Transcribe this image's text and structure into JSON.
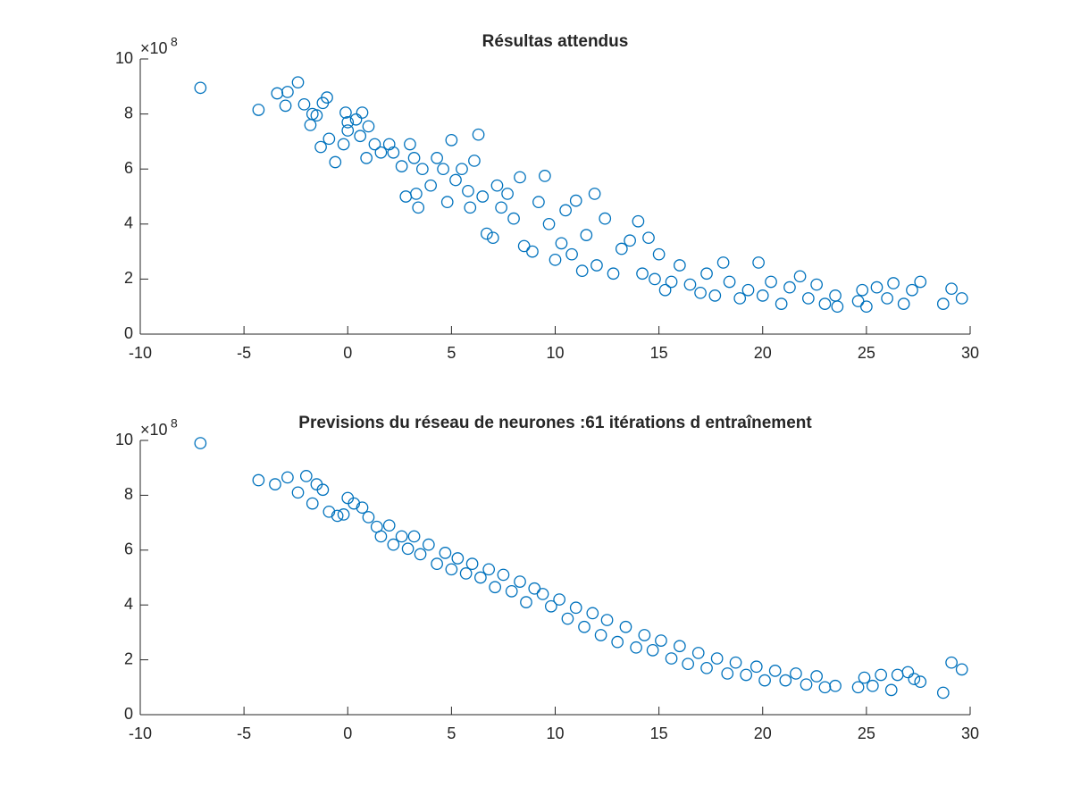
{
  "chart_data": [
    {
      "type": "scatter",
      "title": "Résultas attendus",
      "color": "#0072bd",
      "y_multiplier": "×10",
      "y_exponent": "8",
      "xlim": [
        -10,
        30
      ],
      "xticks": [
        -10,
        -5,
        0,
        5,
        10,
        15,
        20,
        25,
        30
      ],
      "ylim": [
        0,
        10
      ],
      "yticks": [
        0,
        2,
        4,
        6,
        8,
        10
      ],
      "x": [
        -7.1,
        -4.3,
        -3.4,
        -3.0,
        -2.9,
        -2.4,
        -2.1,
        -1.8,
        -1.7,
        -1.5,
        -1.3,
        -1.2,
        -1.0,
        -0.9,
        -0.6,
        -0.2,
        -0.1,
        0,
        0,
        0.4,
        0.6,
        0.7,
        0.9,
        1.0,
        1.3,
        1.6,
        2.0,
        2.2,
        2.6,
        2.8,
        3.0,
        3.2,
        3.3,
        3.4,
        3.6,
        4.0,
        4.3,
        4.6,
        4.8,
        5.0,
        5.2,
        5.5,
        5.8,
        5.9,
        6.1,
        6.3,
        6.5,
        6.7,
        7.0,
        7.2,
        7.4,
        7.7,
        8.0,
        8.3,
        8.5,
        8.9,
        9.2,
        9.5,
        9.7,
        10.0,
        10.3,
        10.5,
        10.8,
        11.0,
        11.3,
        11.5,
        11.9,
        12.0,
        12.4,
        12.8,
        13.2,
        13.6,
        14.0,
        14.2,
        14.5,
        14.8,
        15.0,
        15.3,
        15.6,
        16.0,
        16.5,
        17.0,
        17.3,
        17.7,
        18.1,
        18.4,
        18.9,
        19.3,
        19.8,
        20.0,
        20.4,
        20.9,
        21.3,
        21.8,
        22.2,
        22.6,
        23.0,
        23.5,
        23.6,
        24.6,
        24.8,
        25.0,
        25.5,
        26.0,
        26.3,
        26.8,
        27.2,
        27.6,
        28.7,
        29.1,
        29.6
      ],
      "values": [
        8.95,
        8.15,
        8.75,
        8.3,
        8.8,
        9.15,
        8.35,
        7.6,
        8.0,
        7.95,
        6.8,
        8.4,
        8.6,
        7.1,
        6.25,
        6.9,
        8.05,
        7.7,
        7.4,
        7.8,
        7.2,
        8.05,
        6.4,
        7.55,
        6.9,
        6.6,
        6.9,
        6.6,
        6.1,
        5.0,
        6.9,
        6.4,
        5.1,
        4.6,
        6.0,
        5.4,
        6.4,
        6.0,
        4.8,
        7.05,
        5.6,
        6.0,
        5.2,
        4.6,
        6.3,
        7.25,
        5.0,
        3.65,
        3.5,
        5.4,
        4.6,
        5.1,
        4.2,
        5.7,
        3.2,
        3.0,
        4.8,
        5.75,
        4.0,
        2.7,
        3.3,
        4.5,
        2.9,
        4.85,
        2.3,
        3.6,
        5.1,
        2.5,
        4.2,
        2.2,
        3.1,
        3.4,
        4.1,
        2.2,
        3.5,
        2.0,
        2.9,
        1.6,
        1.9,
        2.5,
        1.8,
        1.5,
        2.2,
        1.4,
        2.6,
        1.9,
        1.3,
        1.6,
        2.6,
        1.4,
        1.9,
        1.1,
        1.7,
        2.1,
        1.3,
        1.8,
        1.1,
        1.4,
        1.0,
        1.2,
        1.6,
        1.0,
        1.7,
        1.3,
        1.85,
        1.1,
        1.6,
        1.9,
        1.1,
        1.65,
        1.3
      ]
    },
    {
      "type": "scatter",
      "title": "Previsions du réseau de neurones :61 itérations d entraînement",
      "color": "#0072bd",
      "y_multiplier": "×10",
      "y_exponent": "8",
      "xlim": [
        -10,
        30
      ],
      "xticks": [
        -10,
        -5,
        0,
        5,
        10,
        15,
        20,
        25,
        30
      ],
      "ylim": [
        0,
        10
      ],
      "yticks": [
        0,
        2,
        4,
        6,
        8,
        10
      ],
      "x": [
        -7.1,
        -4.3,
        -3.5,
        -2.9,
        -2.4,
        -2.0,
        -1.7,
        -1.5,
        -1.2,
        -0.9,
        -0.5,
        -0.2,
        0,
        0.3,
        0.7,
        1.0,
        1.4,
        1.6,
        2.0,
        2.2,
        2.6,
        2.9,
        3.2,
        3.5,
        3.9,
        4.3,
        4.7,
        5.0,
        5.3,
        5.7,
        6.0,
        6.4,
        6.8,
        7.1,
        7.5,
        7.9,
        8.3,
        8.6,
        9.0,
        9.4,
        9.8,
        10.2,
        10.6,
        11.0,
        11.4,
        11.8,
        12.2,
        12.5,
        13.0,
        13.4,
        13.9,
        14.3,
        14.7,
        15.1,
        15.6,
        16.0,
        16.4,
        16.9,
        17.3,
        17.8,
        18.3,
        18.7,
        19.2,
        19.7,
        20.1,
        20.6,
        21.1,
        21.6,
        22.1,
        22.6,
        23.0,
        23.5,
        24.6,
        24.9,
        25.3,
        25.7,
        26.2,
        26.5,
        27.0,
        27.3,
        27.6,
        28.7,
        29.1,
        29.6
      ],
      "values": [
        9.9,
        8.55,
        8.4,
        8.65,
        8.1,
        8.7,
        7.7,
        8.4,
        8.2,
        7.4,
        7.25,
        7.3,
        7.9,
        7.7,
        7.55,
        7.2,
        6.85,
        6.5,
        6.9,
        6.2,
        6.5,
        6.05,
        6.5,
        5.85,
        6.2,
        5.5,
        5.9,
        5.3,
        5.7,
        5.15,
        5.5,
        5.0,
        5.3,
        4.65,
        5.1,
        4.5,
        4.85,
        4.1,
        4.6,
        4.4,
        3.95,
        4.2,
        3.5,
        3.9,
        3.2,
        3.7,
        2.9,
        3.45,
        2.65,
        3.2,
        2.45,
        2.9,
        2.35,
        2.7,
        2.05,
        2.5,
        1.85,
        2.25,
        1.7,
        2.05,
        1.5,
        1.9,
        1.45,
        1.75,
        1.25,
        1.6,
        1.25,
        1.5,
        1.1,
        1.4,
        1.0,
        1.05,
        1.0,
        1.35,
        1.05,
        1.45,
        0.9,
        1.45,
        1.55,
        1.3,
        1.2,
        0.8,
        1.9,
        1.65
      ]
    }
  ]
}
